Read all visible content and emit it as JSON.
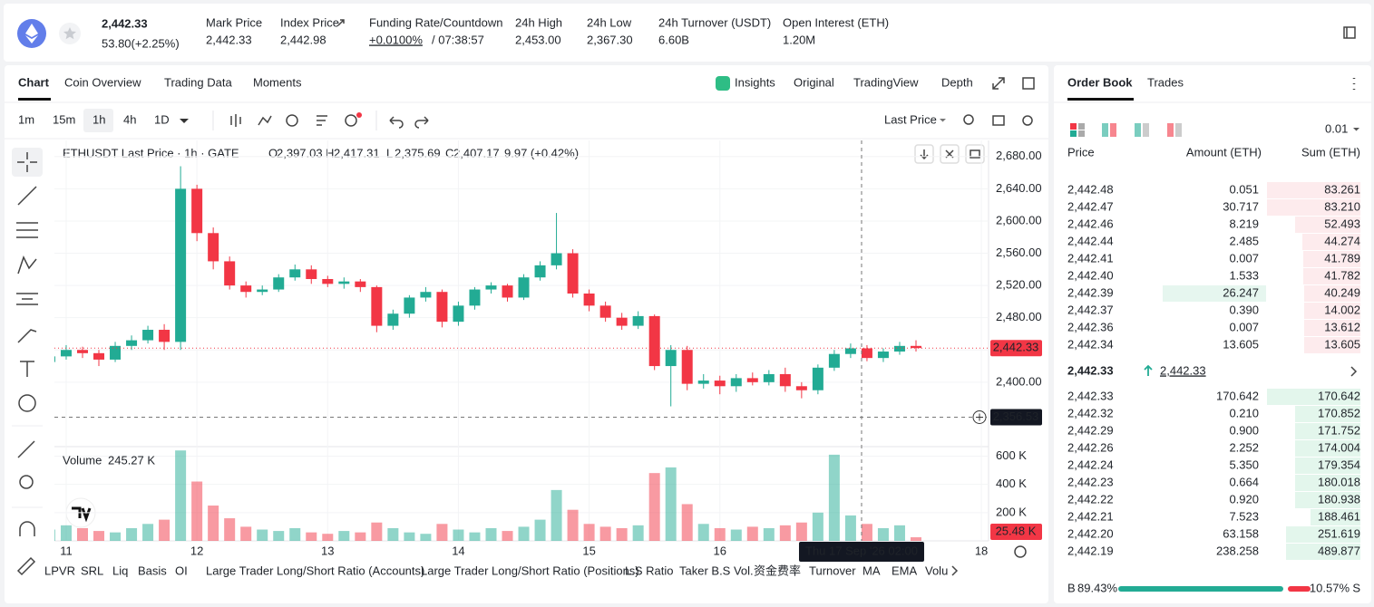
{
  "header": {
    "price": "2,442.33",
    "change": "53.80(+2.25%)",
    "stats": [
      {
        "label": "Mark Price",
        "value": "2,442.33"
      },
      {
        "label": "Index Price",
        "value": "2,442.98"
      },
      {
        "label": "Funding Rate/Countdown",
        "value": "+0.0100%",
        "countdown": "/ 07:38:57"
      },
      {
        "label": "24h High",
        "value": "2,453.00"
      },
      {
        "label": "24h Low",
        "value": "2,367.30"
      },
      {
        "label": "24h Turnover (USDT)",
        "value": "6.60B"
      },
      {
        "label": "Open Interest (ETH)",
        "value": "1.20M"
      }
    ]
  },
  "chart_tabs": [
    "Chart",
    "Coin Overview",
    "Trading Data",
    "Moments"
  ],
  "view_tabs": [
    "Insights",
    "Original",
    "TradingView",
    "Depth"
  ],
  "intervals": [
    "1m",
    "15m",
    "1h",
    "4h",
    "1D"
  ],
  "price_source": "Last Price",
  "legend": {
    "title": "ETHUSDT Last Price · 1h · GATE",
    "ohlc": [
      {
        "label": "O",
        "value": "2,397.03"
      },
      {
        "label": "H",
        "value": "2,417.31"
      },
      {
        "label": "L",
        "value": "2,375.69"
      },
      {
        "label": "C",
        "value": "2,407.17"
      }
    ],
    "change": "9.97 (+0.42%)"
  },
  "chart_data": [
    {
      "type": "candlestick",
      "up_color": "#22ab94",
      "down_color": "#f23645",
      "xlim": [
        0.28,
        57.44
      ],
      "ylim": [
        2320,
        2700
      ],
      "xticks": [
        {
          "value": 1,
          "label": "11"
        },
        {
          "value": 9,
          "label": "12"
        },
        {
          "value": 17,
          "label": "13"
        },
        {
          "value": 25,
          "label": "14"
        },
        {
          "value": 33,
          "label": "15"
        },
        {
          "value": 41,
          "label": "16"
        },
        {
          "value": 57,
          "label": "18"
        }
      ],
      "yticks": [
        {
          "value": 2400,
          "label": "2,400.00"
        },
        {
          "value": 2440,
          "label": "2,440.00"
        },
        {
          "value": 2480,
          "label": "2,480.00"
        },
        {
          "value": 2520,
          "label": "2,520.00"
        },
        {
          "value": 2560,
          "label": "2,560.00"
        },
        {
          "value": 2600,
          "label": "2,600.00"
        },
        {
          "value": 2640,
          "label": "2,640.00"
        },
        {
          "value": 2680,
          "label": "2,680.00"
        }
      ],
      "open": [
        2425,
        2432,
        2440,
        2436,
        2428,
        2445,
        2452,
        2465,
        2450,
        2640,
        2585,
        2550,
        2520,
        2512,
        2515,
        2530,
        2540,
        2528,
        2522,
        2525,
        2518,
        2470,
        2485,
        2505,
        2512,
        2475,
        2495,
        2515,
        2520,
        2505,
        2530,
        2545,
        2560,
        2510,
        2495,
        2480,
        2470,
        2482,
        2420,
        2440,
        2398,
        2402,
        2395,
        2405,
        2400,
        2410,
        2395,
        2390,
        2418,
        2435,
        2442,
        2430,
        2438,
        2445
      ],
      "high": [
        2438,
        2446,
        2444,
        2440,
        2450,
        2458,
        2470,
        2472,
        2668,
        2645,
        2592,
        2556,
        2525,
        2520,
        2534,
        2546,
        2545,
        2532,
        2530,
        2528,
        2520,
        2490,
        2508,
        2518,
        2515,
        2500,
        2518,
        2524,
        2522,
        2534,
        2550,
        2610,
        2565,
        2515,
        2500,
        2486,
        2488,
        2484,
        2446,
        2445,
        2410,
        2408,
        2410,
        2412,
        2415,
        2418,
        2400,
        2422,
        2440,
        2448,
        2446,
        2442,
        2450,
        2452
      ],
      "low": [
        2418,
        2428,
        2430,
        2420,
        2425,
        2440,
        2448,
        2440,
        2440,
        2575,
        2540,
        2515,
        2505,
        2508,
        2512,
        2526,
        2522,
        2518,
        2516,
        2512,
        2462,
        2465,
        2480,
        2500,
        2468,
        2470,
        2490,
        2510,
        2500,
        2502,
        2526,
        2540,
        2505,
        2488,
        2475,
        2465,
        2466,
        2415,
        2370,
        2390,
        2392,
        2385,
        2388,
        2396,
        2396,
        2388,
        2380,
        2385,
        2414,
        2430,
        2426,
        2425,
        2434,
        2438
      ],
      "close": [
        2432,
        2440,
        2436,
        2428,
        2445,
        2452,
        2465,
        2450,
        2640,
        2585,
        2550,
        2520,
        2512,
        2515,
        2530,
        2540,
        2528,
        2522,
        2525,
        2518,
        2470,
        2485,
        2505,
        2512,
        2475,
        2495,
        2515,
        2520,
        2505,
        2530,
        2545,
        2560,
        2510,
        2495,
        2480,
        2470,
        2482,
        2420,
        2440,
        2398,
        2402,
        2395,
        2405,
        2400,
        2410,
        2395,
        2390,
        2418,
        2435,
        2442,
        2430,
        2438,
        2445,
        2442.33
      ],
      "last_price": {
        "value": 2442.33,
        "label": "2,442.33"
      },
      "crosshair": {
        "x": {
          "value": 49.67,
          "label": "Thu 17 Sep '26  02:00"
        },
        "y": {
          "value": 2356.53,
          "label": "2,356.53"
        }
      }
    },
    {
      "type": "bar",
      "title": "Volume",
      "current": "245.27 K",
      "xlim": [
        0.28,
        57.44
      ],
      "ylim": [
        0,
        667000
      ],
      "yticks": [
        {
          "value": 200000,
          "label": "200 K"
        },
        {
          "value": 400000,
          "label": "400 K"
        },
        {
          "value": 600000,
          "label": "600 K"
        }
      ],
      "values": [
        80000,
        110000,
        90000,
        70000,
        60000,
        90000,
        120000,
        150000,
        640000,
        420000,
        250000,
        160000,
        100000,
        80000,
        70000,
        90000,
        60000,
        50000,
        70000,
        60000,
        130000,
        90000,
        60000,
        50000,
        120000,
        80000,
        60000,
        90000,
        70000,
        100000,
        150000,
        360000,
        220000,
        120000,
        100000,
        90000,
        110000,
        480000,
        520000,
        260000,
        120000,
        90000,
        80000,
        100000,
        90000,
        110000,
        130000,
        200000,
        610000,
        180000,
        120000,
        90000,
        110000,
        25480
      ],
      "last_label": "25.48 K"
    }
  ],
  "indicators": [
    "LPVR",
    "SRL",
    "Liq",
    "Basis",
    "OI",
    "Large Trader Long/Short Ratio (Accounts)",
    "Large Trader Long/Short Ratio (Positions)",
    "L.S Ratio",
    "Taker B.S Vol.",
    "资金费率",
    "Turnover",
    "MA",
    "EMA",
    "Volu"
  ],
  "order_book": {
    "tabs": [
      "Order Book",
      "Trades"
    ],
    "precision": "0.01",
    "headers": [
      "Price",
      "Amount (ETH)",
      "Sum (ETH)"
    ],
    "asks": [
      [
        "2,442.48",
        "0.051",
        "83.261"
      ],
      [
        "2,442.47",
        "30.717",
        "83.210"
      ],
      [
        "2,442.46",
        "8.219",
        "52.493"
      ],
      [
        "2,442.44",
        "2.485",
        "44.274"
      ],
      [
        "2,442.41",
        "0.007",
        "41.789"
      ],
      [
        "2,442.40",
        "1.533",
        "41.782"
      ],
      [
        "2,442.39",
        "26.247",
        "40.249"
      ],
      [
        "2,442.37",
        "0.390",
        "14.002"
      ],
      [
        "2,442.36",
        "0.007",
        "13.612"
      ],
      [
        "2,442.34",
        "13.605",
        "13.605"
      ]
    ],
    "last_price": "2,442.33",
    "mark_price": "2,442.33",
    "bids": [
      [
        "2,442.33",
        "170.642",
        "170.642"
      ],
      [
        "2,442.32",
        "0.210",
        "170.852"
      ],
      [
        "2,442.29",
        "0.900",
        "171.752"
      ],
      [
        "2,442.26",
        "2.252",
        "174.004"
      ],
      [
        "2,442.24",
        "5.350",
        "179.354"
      ],
      [
        "2,442.23",
        "0.664",
        "180.018"
      ],
      [
        "2,442.22",
        "0.920",
        "180.938"
      ],
      [
        "2,442.21",
        "7.523",
        "188.461"
      ],
      [
        "2,442.20",
        "63.158",
        "251.619"
      ],
      [
        "2,442.19",
        "238.258",
        "489.877"
      ]
    ],
    "buy_label": "B",
    "buy_ratio": "89.43%",
    "sell_ratio": "10.57%",
    "sell_label": "S"
  }
}
